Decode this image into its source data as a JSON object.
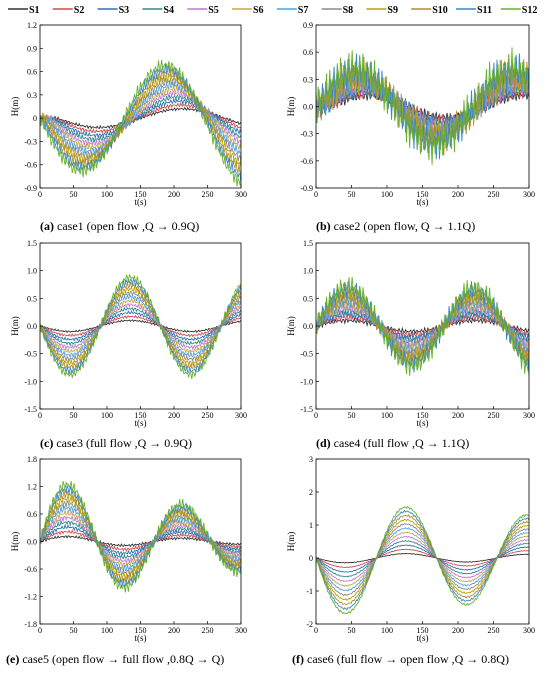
{
  "legend": {
    "series": [
      {
        "name": "S1",
        "color": "#333333"
      },
      {
        "name": "S2",
        "color": "#d24b4b"
      },
      {
        "name": "S3",
        "color": "#2f6fb5"
      },
      {
        "name": "S4",
        "color": "#2b8b8b"
      },
      {
        "name": "S5",
        "color": "#c07ad0"
      },
      {
        "name": "S6",
        "color": "#c8a64a"
      },
      {
        "name": "S7",
        "color": "#4aa3e8"
      },
      {
        "name": "S8",
        "color": "#8a8a8a"
      },
      {
        "name": "S9",
        "color": "#b8a400"
      },
      {
        "name": "S10",
        "color": "#b58b2a"
      },
      {
        "name": "S11",
        "color": "#3a86c8"
      },
      {
        "name": "S12",
        "color": "#68b030"
      }
    ]
  },
  "chart_data": [
    {
      "type": "line",
      "panel": "a",
      "caption_letter": "(a)",
      "caption_text": " case1 (open flow ,Q → 0.9Q)",
      "xlabel": "t(s)",
      "ylabel": "H(m)",
      "xlim": [
        0,
        300
      ],
      "ylim": [
        -0.9,
        1.2
      ],
      "xticks": [
        0,
        50,
        100,
        150,
        200,
        250,
        300
      ],
      "yticks": [
        -0.9,
        -0.6,
        -0.3,
        0.0,
        0.3,
        0.6,
        0.9,
        1.2
      ],
      "ytick_labels": [
        "-0.9",
        "-0.6",
        "-0.3",
        "0",
        "0.3",
        "0.6",
        "0.9",
        "1.2"
      ],
      "series_shape": {
        "kind": "damped_sine",
        "period": 250,
        "phase_deg": 180,
        "min_amp": 0.12,
        "max_amp": 0.68,
        "decay": 0.0,
        "lag": 25,
        "noise": 0.07,
        "tail_offset": -0.2
      }
    },
    {
      "type": "line",
      "panel": "b",
      "caption_letter": "(b)",
      "caption_text": " case2 (open flow, Q → 1.1Q)",
      "xlabel": "t(s)",
      "ylabel": "H(m)",
      "xlim": [
        0,
        300
      ],
      "ylim": [
        -0.9,
        0.9
      ],
      "xticks": [
        0,
        50,
        100,
        150,
        200,
        250,
        300
      ],
      "yticks": [
        -0.9,
        -0.6,
        -0.3,
        0.0,
        0.3,
        0.6,
        0.9
      ],
      "ytick_labels": [
        "-0.9",
        "-0.6",
        "-0.3",
        "0.0",
        "0.3",
        "0.6",
        "0.9"
      ],
      "series_shape": {
        "kind": "damped_sine",
        "period": 220,
        "phase_deg": 0,
        "min_amp": 0.12,
        "max_amp": 0.42,
        "decay": 0.0,
        "lag": 20,
        "noise": 0.18,
        "tail_offset": 0.0
      }
    },
    {
      "type": "line",
      "panel": "c",
      "caption_letter": "(c)",
      "caption_text": " case3 (full flow ,Q → 0.9Q)",
      "xlabel": "t(s)",
      "ylabel": "H(m)",
      "xlim": [
        0,
        300
      ],
      "ylim": [
        -1.5,
        1.5
      ],
      "xticks": [
        0,
        50,
        100,
        150,
        200,
        250,
        300
      ],
      "yticks": [
        -1.5,
        -1.0,
        -0.5,
        0.0,
        0.5,
        1.0,
        1.5
      ],
      "ytick_labels": [
        "-1.5",
        "-1.0",
        "-0.5",
        "0.0",
        "0.5",
        "1.0",
        "1.5"
      ],
      "series_shape": {
        "kind": "damped_sine",
        "period": 180,
        "phase_deg": 180,
        "min_amp": 0.1,
        "max_amp": 0.88,
        "decay": 0.0,
        "lag": 0,
        "noise": 0.06,
        "tail_offset": 0.0
      }
    },
    {
      "type": "line",
      "panel": "d",
      "caption_letter": "(d)",
      "caption_text": " case4 (full flow ,Q → 1.1Q)",
      "xlabel": "t(s)",
      "ylabel": "H(m)",
      "xlim": [
        0,
        300
      ],
      "ylim": [
        -1.5,
        1.5
      ],
      "xticks": [
        0,
        50,
        100,
        150,
        200,
        250,
        300
      ],
      "yticks": [
        -1.5,
        -1.0,
        -0.5,
        0.0,
        0.5,
        1.0,
        1.5
      ],
      "ytick_labels": [
        "-1.5",
        "-1.0",
        "-0.5",
        "0.0",
        "0.5",
        "1.0",
        "1.5"
      ],
      "series_shape": {
        "kind": "damped_sine",
        "period": 180,
        "phase_deg": 0,
        "min_amp": 0.1,
        "max_amp": 0.72,
        "decay": 0.0,
        "lag": 0,
        "noise": 0.16,
        "tail_offset": -0.15
      }
    },
    {
      "type": "line",
      "panel": "e",
      "caption_letter": "(e)",
      "caption_text": " case5 (open flow → full flow ,0.8Q → Q)",
      "xlabel": "t(s)",
      "ylabel": "H(m)",
      "xlim": [
        0,
        300
      ],
      "ylim": [
        -1.8,
        1.8
      ],
      "xticks": [
        0,
        50,
        100,
        150,
        200,
        250,
        300
      ],
      "yticks": [
        -1.8,
        -1.2,
        -0.6,
        0.0,
        0.6,
        1.2,
        1.8
      ],
      "ytick_labels": [
        "-1.8",
        "-1.2",
        "-0.6",
        "0.0",
        "0.6",
        "1.2",
        "1.8"
      ],
      "series_shape": {
        "kind": "damped_sine",
        "period": 170,
        "phase_deg": 0,
        "min_amp": 0.12,
        "max_amp": 1.38,
        "decay": 0.0025,
        "lag": 0,
        "noise": 0.1,
        "tail_offset": 0.0
      }
    },
    {
      "type": "line",
      "panel": "f",
      "caption_letter": "(f)",
      "caption_text": " case6 (full flow → open flow ,Q → 0.8Q)",
      "xlabel": "t(s)",
      "ylabel": "H(m)",
      "xlim": [
        0,
        300
      ],
      "ylim": [
        -2,
        3
      ],
      "xticks": [
        0,
        50,
        100,
        150,
        200,
        250,
        300
      ],
      "yticks": [
        -2,
        -1,
        0,
        1,
        2,
        3
      ],
      "ytick_labels": [
        "-2",
        "-1",
        "0",
        "1",
        "2",
        "3"
      ],
      "series_shape": {
        "kind": "damped_sine",
        "period": 170,
        "phase_deg": 180,
        "min_amp": 0.15,
        "max_amp": 1.75,
        "decay": 0.001,
        "lag": 0,
        "noise": 0.03,
        "tail_offset": 0.0
      }
    }
  ]
}
